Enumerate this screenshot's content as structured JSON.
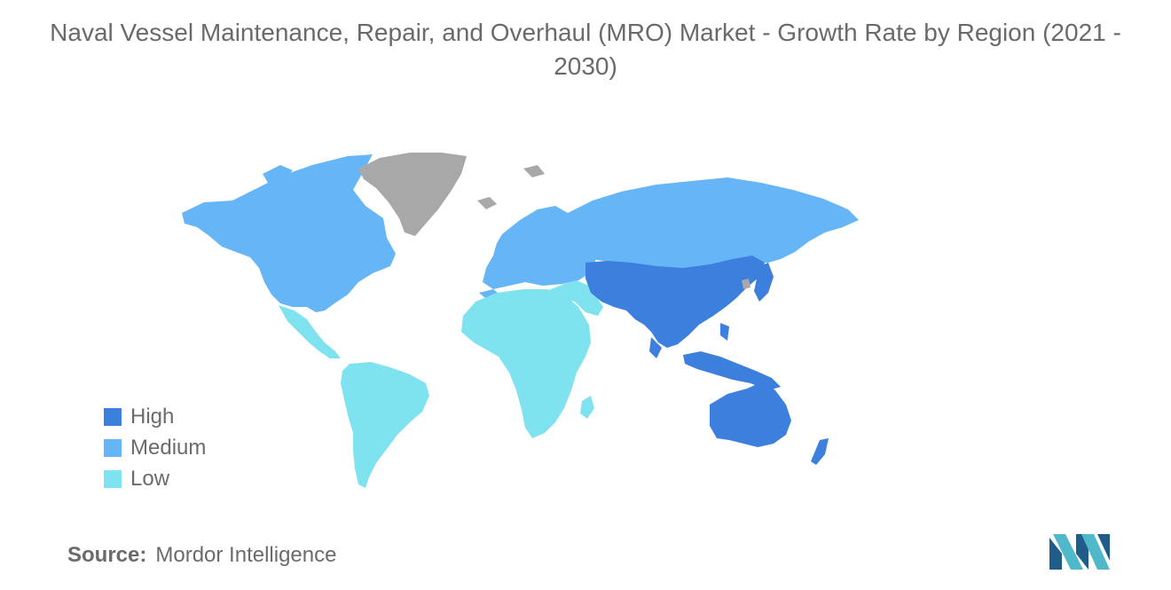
{
  "title": "Naval Vessel Maintenance, Repair, and Overhaul (MRO) Market - Growth Rate by Region (2021 - 2030)",
  "legend": [
    {
      "label": "High",
      "color": "#3c7fdc"
    },
    {
      "label": "Medium",
      "color": "#66b5f7"
    },
    {
      "label": "Low",
      "color": "#7fe3ef"
    }
  ],
  "colors": {
    "high": "#3c7fdc",
    "medium": "#66b5f7",
    "low": "#7fe3ef",
    "no_data": "#a8a8a8",
    "logo_dark": "#1f5c8a",
    "logo_light": "#4fb8c9"
  },
  "regions": [
    {
      "name": "north-america",
      "level": "medium"
    },
    {
      "name": "greenland",
      "level": "no-data"
    },
    {
      "name": "latin-america",
      "level": "low"
    },
    {
      "name": "europe",
      "level": "medium"
    },
    {
      "name": "russia",
      "level": "medium"
    },
    {
      "name": "middle-east-africa",
      "level": "low"
    },
    {
      "name": "asia-pacific",
      "level": "high"
    },
    {
      "name": "australia-new-zealand",
      "level": "high"
    }
  ],
  "source": {
    "label": "Source:",
    "value": "Mordor Intelligence"
  },
  "logo_icon": "mordor-intelligence-logo"
}
